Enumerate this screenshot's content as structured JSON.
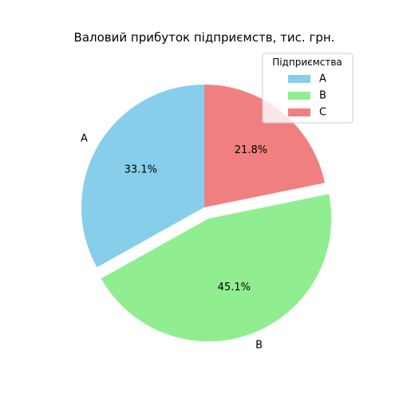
{
  "chart_data": {
    "type": "pie",
    "title": "Валовий прибуток підприємств, тис. грн.",
    "categories": [
      "A",
      "B",
      "C"
    ],
    "values": [
      33.1,
      45.1,
      21.8
    ],
    "percent_labels": [
      "33.1%",
      "45.1%",
      "21.8%"
    ],
    "colors": [
      "#87CEEB",
      "#90EE90",
      "#F08080"
    ],
    "exploded": [
      "B"
    ],
    "start_angle_deg": 90,
    "direction": "counterclockwise",
    "legend": {
      "title": "Підприємства",
      "placement": "top-right",
      "entries": [
        "A",
        "B",
        "C"
      ]
    }
  }
}
